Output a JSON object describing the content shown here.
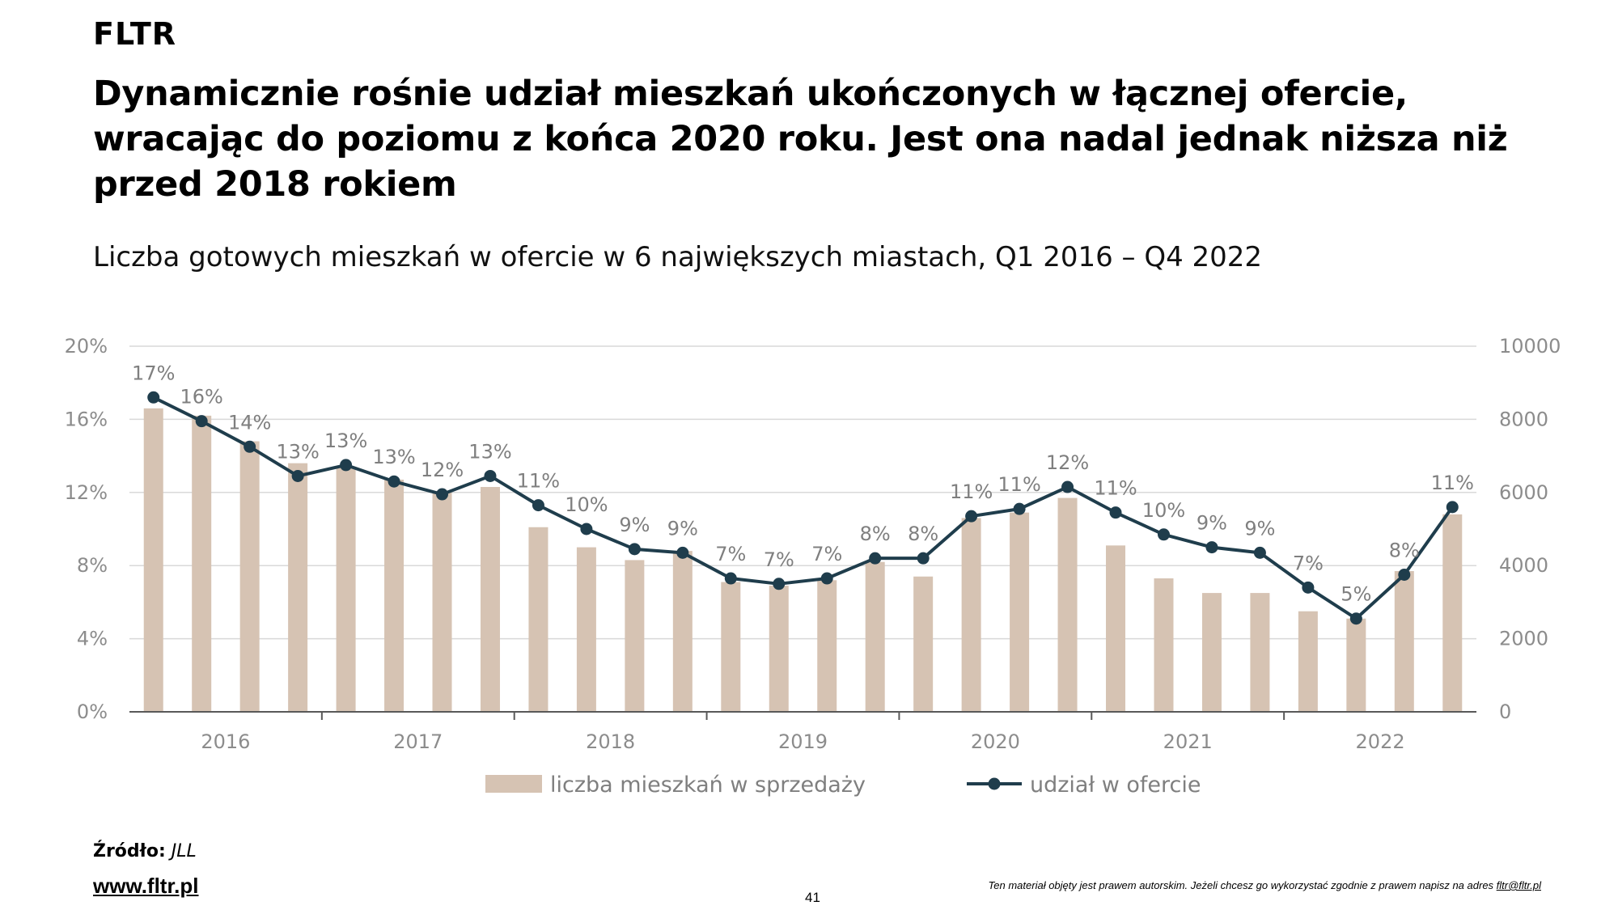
{
  "brand": "FLTR",
  "headline": "Dynamicznie rośnie udział mieszkań ukończonych w łącznej ofercie, wracając do poziomu z końca 2020 roku. Jest ona nadal jednak niższa niż przed 2018 rokiem",
  "chart_data": {
    "type": "bar+line",
    "title": "Liczba gotowych mieszkań w ofercie w 6 największych miastach, Q1 2016 – Q4 2022",
    "x_groups": [
      "2016",
      "2017",
      "2018",
      "2019",
      "2020",
      "2021",
      "2022"
    ],
    "quarters": [
      "Q1 2016",
      "Q2 2016",
      "Q3 2016",
      "Q4 2016",
      "Q1 2017",
      "Q2 2017",
      "Q3 2017",
      "Q4 2017",
      "Q1 2018",
      "Q2 2018",
      "Q3 2018",
      "Q4 2018",
      "Q1 2019",
      "Q2 2019",
      "Q3 2019",
      "Q4 2019",
      "Q1 2020",
      "Q2 2020",
      "Q3 2020",
      "Q4 2020",
      "Q1 2021",
      "Q2 2021",
      "Q3 2021",
      "Q4 2021",
      "Q1 2022",
      "Q2 2022",
      "Q3 2022",
      "Q4 2022"
    ],
    "series": [
      {
        "name": "liczba mieszkań w sprzedaży",
        "type": "bar",
        "axis": "right",
        "color": "#d6c3b3",
        "values": [
          8300,
          8100,
          7400,
          6800,
          6700,
          6350,
          6000,
          6150,
          5050,
          4500,
          4150,
          4400,
          3550,
          3450,
          3600,
          4100,
          3700,
          5300,
          5450,
          5850,
          4550,
          3650,
          3250,
          3250,
          2750,
          2550,
          3850,
          5400
        ]
      },
      {
        "name": "udział w ofercie",
        "type": "line",
        "axis": "left",
        "color": "#1f3d4c",
        "values": [
          17.2,
          15.9,
          14.5,
          12.9,
          13.5,
          12.6,
          11.9,
          12.9,
          11.3,
          10.0,
          8.9,
          8.7,
          7.3,
          7.0,
          7.3,
          8.4,
          8.4,
          10.7,
          11.1,
          12.3,
          10.9,
          9.7,
          9.0,
          8.7,
          6.8,
          5.1,
          7.5,
          11.2
        ],
        "labels": [
          "17%",
          "16%",
          "14%",
          "13%",
          "13%",
          "13%",
          "12%",
          "13%",
          "11%",
          "10%",
          "9%",
          "9%",
          "7%",
          "7%",
          "7%",
          "8%",
          "8%",
          "11%",
          "11%",
          "12%",
          "11%",
          "10%",
          "9%",
          "9%",
          "7%",
          "5%",
          "8%",
          "11%"
        ]
      }
    ],
    "y_left": {
      "min": 0,
      "max": 20,
      "ticks": [
        "0%",
        "4%",
        "8%",
        "12%",
        "16%",
        "20%"
      ]
    },
    "y_right": {
      "min": 0,
      "max": 10000,
      "ticks": [
        "0",
        "2000",
        "4000",
        "6000",
        "8000",
        "10000"
      ]
    },
    "grid": true,
    "legend_position": "bottom"
  },
  "footer": {
    "source_label": "Źródło:",
    "source_value": "JLL",
    "website": "www.fltr.pl",
    "page_number": "41",
    "copyright": "Ten materiał objęty jest prawem autorskim. Jeżeli chcesz go wykorzystać zgodnie z prawem napisz na adres",
    "email": "fltr@fltr.pl"
  }
}
